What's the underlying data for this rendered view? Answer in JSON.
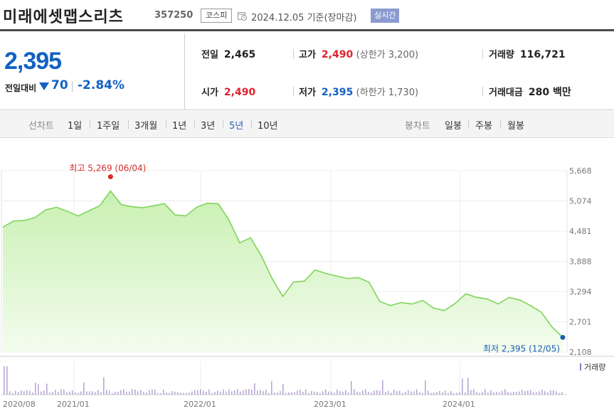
{
  "header": {
    "stock_name": "미래에셋맵스리츠",
    "stock_code": "357250",
    "market": "코스피",
    "date_info": "2024.12.05 기준(장마감)",
    "realtime": "실시간"
  },
  "summary": {
    "current_price": "2,395",
    "change_label": "전일대비",
    "change_direction": "down",
    "change_value": "70",
    "change_rate": "-2.84%",
    "prev_close_label": "전일",
    "prev_close": "2,465",
    "open_label": "시가",
    "open": "2,490",
    "high_label": "고가",
    "high": "2,490",
    "upper_limit": "(상한가 3,200)",
    "low_label": "저가",
    "low": "2,395",
    "lower_limit": "(하한가 1,730)",
    "volume_label": "거래량",
    "volume": "116,721",
    "amount_label": "거래대금",
    "amount": "280 백만"
  },
  "period_tabs": {
    "label": "선차트",
    "items": [
      "1일",
      "1주일",
      "3개월",
      "1년",
      "3년",
      "5년",
      "10년"
    ],
    "active": "5년"
  },
  "candle_tabs": {
    "label": "봉차트",
    "items": [
      "일봉",
      "주봉",
      "월봉"
    ]
  },
  "colors": {
    "up": "#e0232d",
    "down": "#1261c4",
    "line": "#7fd45a",
    "fill": "#e6f8d9"
  },
  "chart_data": {
    "type": "area",
    "y_ticks": [
      "5,668",
      "5,074",
      "4,481",
      "3,888",
      "3,294",
      "2,701",
      "2,108"
    ],
    "ylim": [
      2108,
      5668
    ],
    "x_ticks": [
      "2020/08",
      "2021/01",
      "2022/01",
      "2023/01",
      "2024/01"
    ],
    "high_annotation": "최고 5,269 (06/04)",
    "low_annotation": "최저 2,395 (12/05)",
    "volume_legend": "거래량",
    "x": [
      "2020/08",
      "2020/09",
      "2020/10",
      "2020/11",
      "2020/12",
      "2021/01",
      "2021/02",
      "2021/03",
      "2021/04",
      "2021/05",
      "2021/06",
      "2021/07",
      "2021/08",
      "2021/09",
      "2021/10",
      "2021/11",
      "2021/12",
      "2022/01",
      "2022/02",
      "2022/03",
      "2022/04",
      "2022/05",
      "2022/06",
      "2022/07",
      "2022/08",
      "2022/09",
      "2022/10",
      "2022/11",
      "2022/12",
      "2023/01",
      "2023/02",
      "2023/03",
      "2023/04",
      "2023/05",
      "2023/06",
      "2023/07",
      "2023/08",
      "2023/09",
      "2023/10",
      "2023/11",
      "2023/12",
      "2024/01",
      "2024/02",
      "2024/03",
      "2024/04",
      "2024/05",
      "2024/06",
      "2024/07",
      "2024/08",
      "2024/09",
      "2024/10",
      "2024/11",
      "2024/12"
    ],
    "series": [
      {
        "values": [
          4560,
          4680,
          4690,
          4750,
          4900,
          4950,
          4870,
          4780,
          4880,
          4980,
          5269,
          5000,
          4960,
          4940,
          4980,
          5020,
          4800,
          4780,
          4950,
          5030,
          5020,
          4700,
          4250,
          4350,
          4000,
          3550,
          3200,
          3480,
          3500,
          3720,
          3650,
          3600,
          3550,
          3570,
          3480,
          3100,
          3020,
          3080,
          3050,
          3120,
          2970,
          2920,
          3060,
          3250,
          3180,
          3150,
          3050,
          3180,
          3130,
          3020,
          2890,
          2600,
          2395
        ]
      }
    ]
  }
}
